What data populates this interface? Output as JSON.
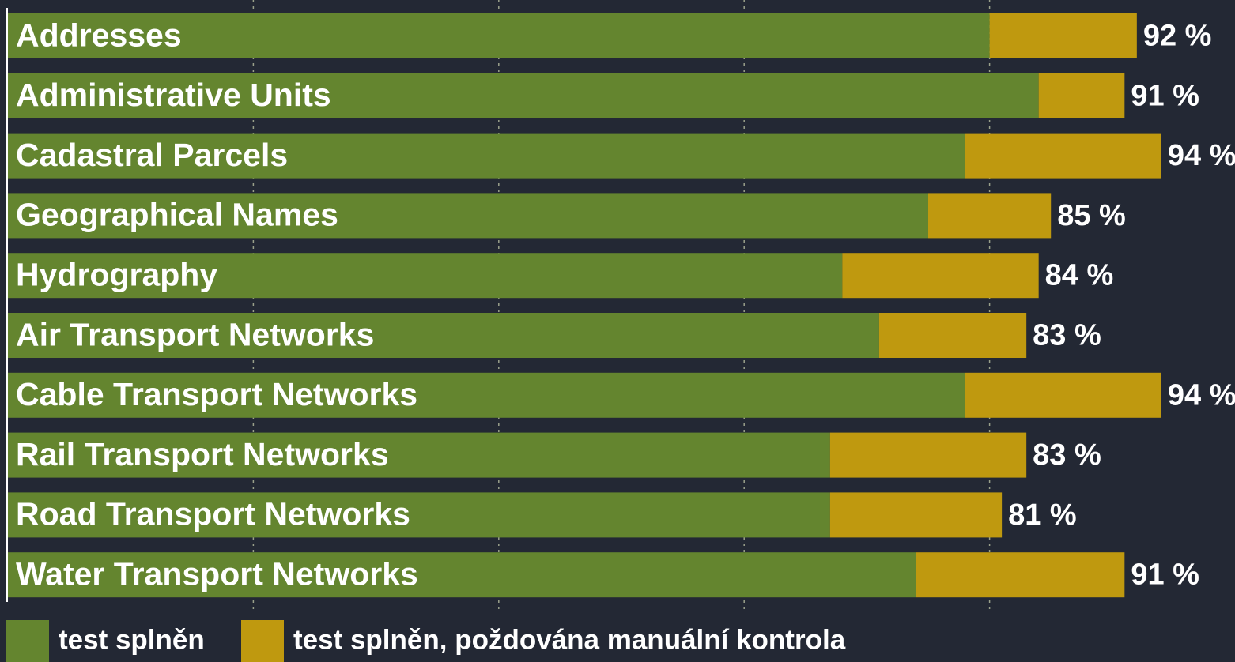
{
  "chart_data": {
    "type": "stacked-barh",
    "categories": [
      "Addresses",
      "Administrative Units",
      "Cadastral Parcels",
      "Geographical Names",
      "Hydrography",
      "Air Transport Networks",
      "Cable Transport Networks",
      "Rail Transport Networks",
      "Road Transport Networks",
      "Water Transport Networks"
    ],
    "series": [
      {
        "name": "test splněn",
        "color": "#64852f",
        "values": [
          80,
          84,
          78,
          75,
          68,
          71,
          78,
          67,
          67,
          74
        ]
      },
      {
        "name": "test splněn, poždována manuální kontrola",
        "color": "#bf990f",
        "values": [
          12,
          7,
          16,
          10,
          16,
          12,
          16,
          16,
          14,
          17
        ]
      }
    ],
    "totals": [
      92,
      91,
      94,
      85,
      84,
      83,
      94,
      83,
      81,
      91
    ],
    "total_labels": [
      "92 %",
      "91 %",
      "94 %",
      "85 %",
      "84 %",
      "83 %",
      "94 %",
      "83 %",
      "81 %",
      "91 %"
    ],
    "xlim": [
      0,
      100
    ],
    "xticks": [
      20,
      40,
      60,
      80
    ],
    "grid": true
  }
}
